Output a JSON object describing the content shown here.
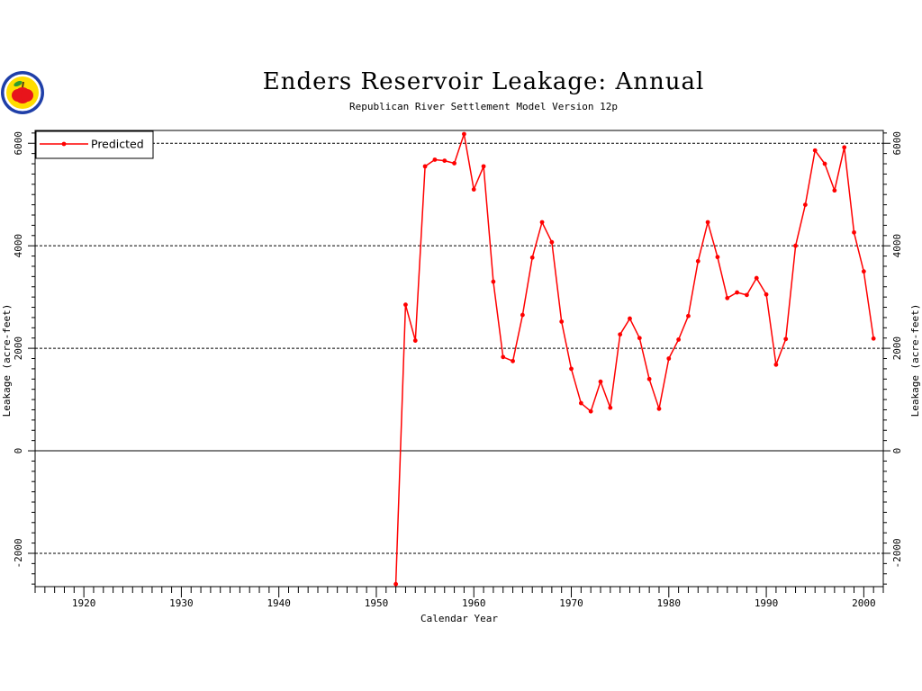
{
  "title": "Enders Reservoir Leakage: Annual",
  "subtitle": "Republican River Settlement Model Version 12p",
  "logo_icon": "apple-seal-logo",
  "colors": {
    "series": "#ff0000",
    "axis": "#000000",
    "grid": "#000000"
  },
  "chart_data": {
    "type": "line",
    "xlabel": "Calendar Year",
    "ylabel": "Leakage (acre-feet)",
    "xlim": [
      1915,
      2002
    ],
    "ylim": [
      -2650,
      6250
    ],
    "x_ticks": [
      1920,
      1930,
      1940,
      1950,
      1960,
      1970,
      1980,
      1990,
      2000
    ],
    "y_ticks": [
      -2000,
      0,
      2000,
      4000,
      6000
    ],
    "grid": "dashed horizontal at major y ticks, solid at zero",
    "legend": "top-left",
    "series": [
      {
        "name": "Predicted",
        "color": "#ff0000",
        "x": [
          1952,
          1953,
          1954,
          1955,
          1956,
          1957,
          1958,
          1959,
          1960,
          1961,
          1962,
          1963,
          1964,
          1965,
          1966,
          1967,
          1968,
          1969,
          1970,
          1971,
          1972,
          1973,
          1974,
          1975,
          1976,
          1977,
          1978,
          1979,
          1980,
          1981,
          1982,
          1983,
          1984,
          1985,
          1986,
          1987,
          1988,
          1989,
          1990,
          1991,
          1992,
          1993,
          1994,
          1995,
          1996,
          1997,
          1998,
          1999,
          2000,
          2001
        ],
        "values": [
          -2600,
          2850,
          2150,
          5550,
          5680,
          5660,
          5610,
          6180,
          5100,
          5550,
          3300,
          1830,
          1750,
          2650,
          3770,
          4460,
          4070,
          2520,
          1600,
          930,
          770,
          1350,
          840,
          2270,
          2580,
          2200,
          1400,
          820,
          1800,
          2170,
          2630,
          3700,
          4460,
          3780,
          2980,
          3090,
          3040,
          3370,
          3050,
          1680,
          2180,
          4000,
          4800,
          5860,
          5600,
          5080,
          5920,
          4260,
          3500,
          2190
        ]
      }
    ]
  }
}
